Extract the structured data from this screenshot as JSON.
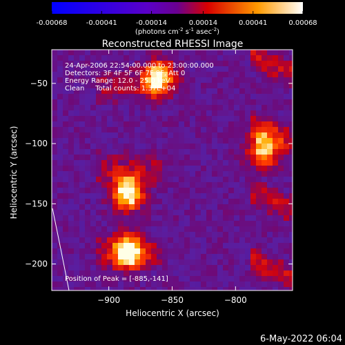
{
  "colorbar": {
    "tick_labels": [
      "-0.00068",
      "-0.00041",
      "-0.00014",
      "0.00014",
      "0.00041",
      "0.00068"
    ],
    "tick_values": [
      -0.00068,
      -0.00041,
      -0.00014,
      0.00014,
      0.00041,
      0.00068
    ],
    "range": [
      -0.00068,
      0.00068
    ],
    "unit_label": "(photons cm",
    "unit_exp1": "-2",
    "unit_mid": " s",
    "unit_exp2": "-1",
    "unit_mid2": " asec",
    "unit_exp3": "-2",
    "unit_end": ")"
  },
  "chart_data": {
    "type": "heatmap",
    "title": "Reconstructed RHESSI Image",
    "xlabel": "Heliocentric X (arcsec)",
    "ylabel": "Heliocentric Y (arcsec)",
    "xlim": [
      -945,
      -755
    ],
    "ylim": [
      -222,
      -22
    ],
    "x_ticks": [
      -900,
      -850,
      -800
    ],
    "x_tick_labels": [
      "−900",
      "−850",
      "−800"
    ],
    "y_ticks": [
      -50,
      -100,
      -150,
      -200
    ],
    "y_tick_labels": [
      "−50",
      "−100",
      "−150",
      "−200"
    ],
    "annotations": [
      "24-Apr-2006 22:54:00.000 to 23:00:00.000",
      "Detectors: 3F 4F 5F 6F 7F 8F, Att 0",
      "Energy Range: 12.0 - 25.0 keV",
      "Clean     Total counts: 1.37E+04"
    ],
    "peak_label": "Position of Peak = [-885,-141]",
    "peak_position": [
      -885,
      -141
    ],
    "bright_sources": [
      {
        "x": -885,
        "y": -141,
        "level": 1.0
      },
      {
        "x": -885,
        "y": -190,
        "level": 0.9
      },
      {
        "x": -860,
        "y": -45,
        "level": 0.9
      },
      {
        "x": -778,
        "y": -105,
        "level": 0.85
      }
    ],
    "limb_line": true,
    "timestamp": "6-May-2022 06:04"
  }
}
